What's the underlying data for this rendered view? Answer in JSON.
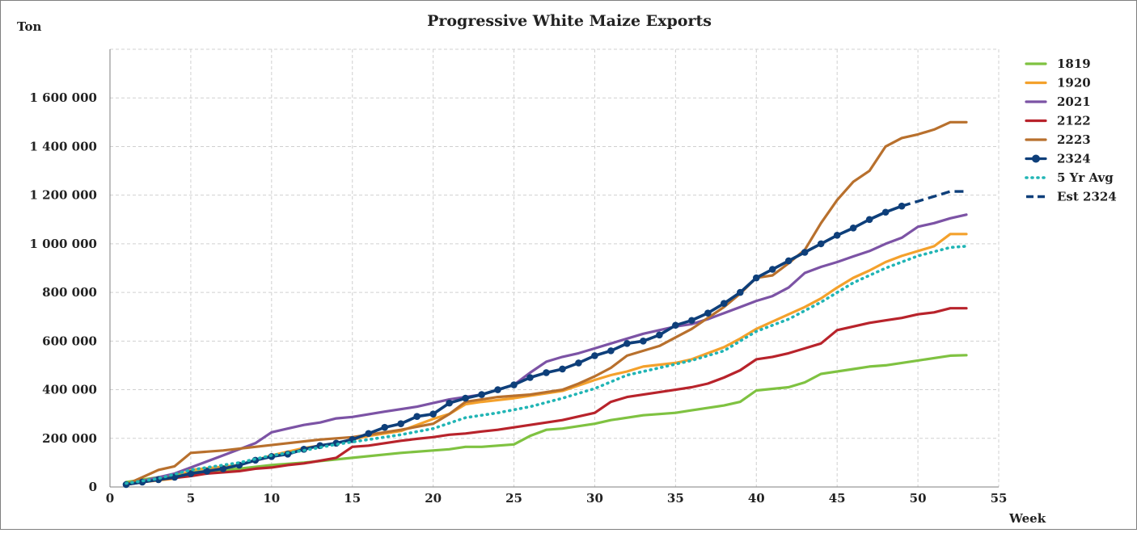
{
  "chart_data": {
    "type": "line",
    "title": "Progressive White Maize Exports",
    "ylabel": "Ton",
    "xlabel": "Week",
    "xlim": [
      0,
      55
    ],
    "ylim": [
      0,
      1800000
    ],
    "x_ticks": [
      0,
      5,
      10,
      15,
      20,
      25,
      30,
      35,
      40,
      45,
      50,
      55
    ],
    "y_ticks": [
      0,
      200000,
      400000,
      600000,
      800000,
      1000000,
      1200000,
      1400000,
      1600000
    ],
    "y_tick_labels": [
      "0",
      "200 000",
      "400 000",
      "600 000",
      "800 000",
      "1 000 000",
      "1 200 000",
      "1 400 000",
      "1 600 000"
    ],
    "grid": true,
    "legend_position": "right",
    "series": [
      {
        "name": "1819",
        "color": "#7fc241",
        "style": "solid",
        "points": [
          [
            1,
            20000
          ],
          [
            3,
            40000
          ],
          [
            5,
            60000
          ],
          [
            8,
            75000
          ],
          [
            10,
            90000
          ],
          [
            12,
            100000
          ],
          [
            15,
            120000
          ],
          [
            18,
            140000
          ],
          [
            20,
            150000
          ],
          [
            21,
            155000
          ],
          [
            22,
            165000
          ],
          [
            23,
            165000
          ],
          [
            25,
            175000
          ],
          [
            26,
            210000
          ],
          [
            27,
            235000
          ],
          [
            28,
            240000
          ],
          [
            30,
            260000
          ],
          [
            31,
            275000
          ],
          [
            33,
            295000
          ],
          [
            35,
            305000
          ],
          [
            36,
            315000
          ],
          [
            37,
            325000
          ],
          [
            38,
            335000
          ],
          [
            39,
            350000
          ],
          [
            40,
            397000
          ],
          [
            42,
            410000
          ],
          [
            43,
            430000
          ],
          [
            44,
            465000
          ],
          [
            46,
            485000
          ],
          [
            47,
            495000
          ],
          [
            48,
            500000
          ],
          [
            50,
            520000
          ],
          [
            52,
            540000
          ],
          [
            53,
            542000
          ]
        ]
      },
      {
        "name": "1920",
        "color": "#f4a12c",
        "style": "solid",
        "points": [
          [
            1,
            10000
          ],
          [
            2,
            20000
          ],
          [
            4,
            35000
          ],
          [
            5,
            70000
          ],
          [
            8,
            90000
          ],
          [
            10,
            130000
          ],
          [
            12,
            160000
          ],
          [
            14,
            180000
          ],
          [
            16,
            210000
          ],
          [
            18,
            230000
          ],
          [
            20,
            280000
          ],
          [
            21,
            300000
          ],
          [
            22,
            340000
          ],
          [
            23,
            350000
          ],
          [
            25,
            365000
          ],
          [
            27,
            385000
          ],
          [
            28,
            395000
          ],
          [
            30,
            440000
          ],
          [
            31,
            460000
          ],
          [
            32,
            475000
          ],
          [
            33,
            495000
          ],
          [
            35,
            510000
          ],
          [
            36,
            525000
          ],
          [
            37,
            550000
          ],
          [
            38,
            575000
          ],
          [
            39,
            610000
          ],
          [
            40,
            650000
          ],
          [
            41,
            680000
          ],
          [
            42,
            710000
          ],
          [
            43,
            740000
          ],
          [
            44,
            775000
          ],
          [
            45,
            820000
          ],
          [
            46,
            860000
          ],
          [
            47,
            890000
          ],
          [
            48,
            925000
          ],
          [
            49,
            950000
          ],
          [
            50,
            970000
          ],
          [
            51,
            990000
          ],
          [
            52,
            1040000
          ],
          [
            53,
            1040000
          ]
        ]
      },
      {
        "name": "2021",
        "color": "#7c53a5",
        "style": "solid",
        "points": [
          [
            1,
            10000
          ],
          [
            3,
            40000
          ],
          [
            4,
            55000
          ],
          [
            5,
            80000
          ],
          [
            7,
            130000
          ],
          [
            9,
            180000
          ],
          [
            10,
            225000
          ],
          [
            11,
            240000
          ],
          [
            12,
            255000
          ],
          [
            13,
            265000
          ],
          [
            14,
            282000
          ],
          [
            15,
            288000
          ],
          [
            17,
            310000
          ],
          [
            19,
            330000
          ],
          [
            21,
            360000
          ],
          [
            23,
            380000
          ],
          [
            25,
            420000
          ],
          [
            26,
            470000
          ],
          [
            27,
            515000
          ],
          [
            28,
            535000
          ],
          [
            29,
            550000
          ],
          [
            30,
            570000
          ],
          [
            31,
            590000
          ],
          [
            32,
            610000
          ],
          [
            33,
            630000
          ],
          [
            34,
            645000
          ],
          [
            35,
            660000
          ],
          [
            36,
            670000
          ],
          [
            37,
            690000
          ],
          [
            38,
            715000
          ],
          [
            39,
            740000
          ],
          [
            40,
            765000
          ],
          [
            41,
            785000
          ],
          [
            42,
            820000
          ],
          [
            43,
            880000
          ],
          [
            44,
            905000
          ],
          [
            45,
            925000
          ],
          [
            46,
            948000
          ],
          [
            47,
            970000
          ],
          [
            48,
            1000000
          ],
          [
            49,
            1025000
          ],
          [
            50,
            1070000
          ],
          [
            51,
            1085000
          ],
          [
            52,
            1105000
          ],
          [
            53,
            1120000
          ]
        ]
      },
      {
        "name": "2122",
        "color": "#b8232b",
        "style": "solid",
        "points": [
          [
            1,
            10000
          ],
          [
            3,
            30000
          ],
          [
            5,
            45000
          ],
          [
            6,
            55000
          ],
          [
            8,
            65000
          ],
          [
            9,
            75000
          ],
          [
            10,
            80000
          ],
          [
            11,
            90000
          ],
          [
            12,
            97000
          ],
          [
            13,
            108000
          ],
          [
            14,
            120000
          ],
          [
            15,
            165000
          ],
          [
            16,
            170000
          ],
          [
            17,
            180000
          ],
          [
            18,
            190000
          ],
          [
            19,
            198000
          ],
          [
            20,
            205000
          ],
          [
            21,
            215000
          ],
          [
            22,
            220000
          ],
          [
            23,
            228000
          ],
          [
            24,
            235000
          ],
          [
            25,
            245000
          ],
          [
            26,
            255000
          ],
          [
            27,
            265000
          ],
          [
            28,
            275000
          ],
          [
            29,
            290000
          ],
          [
            30,
            305000
          ],
          [
            31,
            350000
          ],
          [
            32,
            370000
          ],
          [
            33,
            380000
          ],
          [
            34,
            390000
          ],
          [
            35,
            400000
          ],
          [
            36,
            410000
          ],
          [
            37,
            425000
          ],
          [
            38,
            450000
          ],
          [
            39,
            480000
          ],
          [
            40,
            525000
          ],
          [
            41,
            535000
          ],
          [
            42,
            550000
          ],
          [
            43,
            570000
          ],
          [
            44,
            590000
          ],
          [
            45,
            645000
          ],
          [
            46,
            660000
          ],
          [
            47,
            675000
          ],
          [
            48,
            685000
          ],
          [
            49,
            695000
          ],
          [
            50,
            710000
          ],
          [
            51,
            718000
          ],
          [
            52,
            735000
          ],
          [
            53,
            735000
          ]
        ]
      },
      {
        "name": "2223",
        "color": "#b8702d",
        "style": "solid",
        "points": [
          [
            1,
            10000
          ],
          [
            2,
            40000
          ],
          [
            3,
            70000
          ],
          [
            4,
            85000
          ],
          [
            5,
            140000
          ],
          [
            7,
            150000
          ],
          [
            9,
            165000
          ],
          [
            11,
            180000
          ],
          [
            13,
            195000
          ],
          [
            15,
            205000
          ],
          [
            16,
            215000
          ],
          [
            18,
            235000
          ],
          [
            20,
            260000
          ],
          [
            21,
            300000
          ],
          [
            22,
            350000
          ],
          [
            23,
            360000
          ],
          [
            24,
            370000
          ],
          [
            25,
            375000
          ],
          [
            26,
            380000
          ],
          [
            27,
            390000
          ],
          [
            28,
            400000
          ],
          [
            29,
            425000
          ],
          [
            30,
            455000
          ],
          [
            31,
            490000
          ],
          [
            32,
            540000
          ],
          [
            33,
            560000
          ],
          [
            34,
            580000
          ],
          [
            35,
            615000
          ],
          [
            36,
            650000
          ],
          [
            37,
            695000
          ],
          [
            38,
            740000
          ],
          [
            39,
            795000
          ],
          [
            40,
            860000
          ],
          [
            41,
            870000
          ],
          [
            42,
            920000
          ],
          [
            43,
            975000
          ],
          [
            44,
            1085000
          ],
          [
            45,
            1180000
          ],
          [
            46,
            1255000
          ],
          [
            47,
            1300000
          ],
          [
            48,
            1400000
          ],
          [
            49,
            1435000
          ],
          [
            50,
            1450000
          ],
          [
            51,
            1470000
          ],
          [
            52,
            1500000
          ],
          [
            53,
            1500000
          ]
        ]
      },
      {
        "name": "2324",
        "color": "#0e3f7a",
        "style": "marker",
        "points": [
          [
            1,
            10000
          ],
          [
            2,
            20000
          ],
          [
            3,
            30000
          ],
          [
            4,
            40000
          ],
          [
            5,
            55000
          ],
          [
            6,
            65000
          ],
          [
            7,
            75000
          ],
          [
            8,
            90000
          ],
          [
            9,
            110000
          ],
          [
            10,
            125000
          ],
          [
            11,
            135000
          ],
          [
            12,
            155000
          ],
          [
            13,
            170000
          ],
          [
            14,
            180000
          ],
          [
            15,
            195000
          ],
          [
            16,
            220000
          ],
          [
            17,
            245000
          ],
          [
            18,
            260000
          ],
          [
            19,
            290000
          ],
          [
            20,
            300000
          ],
          [
            21,
            345000
          ],
          [
            22,
            365000
          ],
          [
            23,
            380000
          ],
          [
            24,
            400000
          ],
          [
            25,
            420000
          ],
          [
            26,
            450000
          ],
          [
            27,
            470000
          ],
          [
            28,
            485000
          ],
          [
            29,
            510000
          ],
          [
            30,
            540000
          ],
          [
            31,
            560000
          ],
          [
            32,
            590000
          ],
          [
            33,
            600000
          ],
          [
            34,
            625000
          ],
          [
            35,
            665000
          ],
          [
            36,
            685000
          ],
          [
            37,
            715000
          ],
          [
            38,
            755000
          ],
          [
            39,
            800000
          ],
          [
            40,
            860000
          ],
          [
            41,
            895000
          ],
          [
            42,
            930000
          ],
          [
            43,
            965000
          ],
          [
            44,
            1000000
          ],
          [
            45,
            1035000
          ],
          [
            46,
            1065000
          ],
          [
            47,
            1100000
          ],
          [
            48,
            1130000
          ],
          [
            49,
            1155000
          ]
        ]
      },
      {
        "name": "5 Yr Avg",
        "color": "#21b5b5",
        "style": "dotted",
        "points": [
          [
            1,
            15000
          ],
          [
            3,
            35000
          ],
          [
            5,
            70000
          ],
          [
            8,
            100000
          ],
          [
            10,
            130000
          ],
          [
            12,
            150000
          ],
          [
            14,
            175000
          ],
          [
            16,
            195000
          ],
          [
            18,
            215000
          ],
          [
            20,
            240000
          ],
          [
            22,
            285000
          ],
          [
            24,
            305000
          ],
          [
            26,
            330000
          ],
          [
            28,
            365000
          ],
          [
            30,
            405000
          ],
          [
            32,
            460000
          ],
          [
            34,
            490000
          ],
          [
            36,
            520000
          ],
          [
            38,
            560000
          ],
          [
            40,
            640000
          ],
          [
            42,
            690000
          ],
          [
            44,
            760000
          ],
          [
            46,
            840000
          ],
          [
            48,
            900000
          ],
          [
            50,
            950000
          ],
          [
            52,
            985000
          ],
          [
            53,
            990000
          ]
        ]
      },
      {
        "name": "Est 2324",
        "color": "#0e3f7a",
        "style": "dashed",
        "points": [
          [
            49,
            1155000
          ],
          [
            50,
            1175000
          ],
          [
            51,
            1195000
          ],
          [
            52,
            1215000
          ],
          [
            53,
            1215000
          ]
        ]
      }
    ]
  }
}
